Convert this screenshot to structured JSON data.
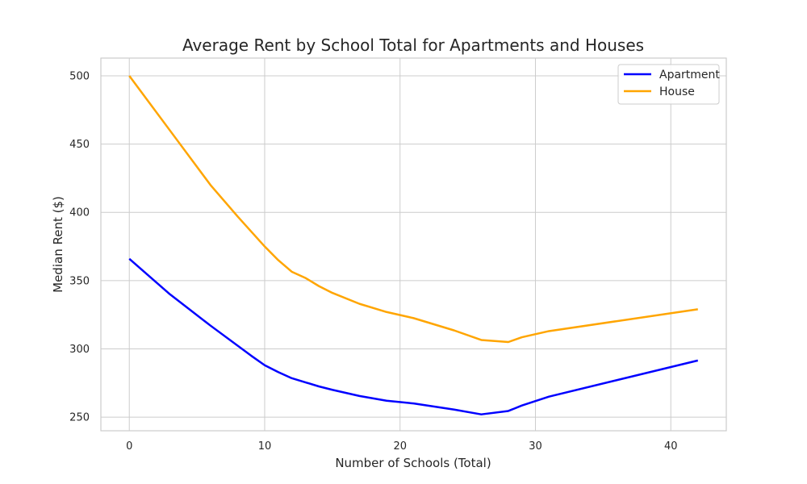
{
  "chart_data": {
    "type": "line",
    "title": "Average Rent by School Total for Apartments and Houses",
    "xlabel": "Number of Schools (Total)",
    "ylabel": "Median Rent ($)",
    "xlim": [
      -2.1,
      44.1
    ],
    "ylim": [
      240,
      513
    ],
    "xticks": [
      0,
      10,
      20,
      30,
      40
    ],
    "yticks": [
      250,
      300,
      350,
      400,
      450,
      500
    ],
    "grid": true,
    "legend_position": "top-right",
    "series": [
      {
        "name": "Apartment",
        "color": "#0000ff",
        "x": [
          0,
          3,
          6,
          9,
          10,
          11,
          12,
          13,
          14,
          15,
          17,
          19,
          21,
          24,
          26,
          28,
          29,
          31,
          42
        ],
        "y": [
          366,
          340,
          317,
          295,
          288,
          283,
          278.5,
          275.5,
          272.5,
          270,
          265.5,
          262,
          260,
          255.5,
          252,
          254.5,
          258.5,
          265,
          291.5
        ]
      },
      {
        "name": "House",
        "color": "#ffa500",
        "x": [
          0,
          3,
          6,
          8,
          9,
          10,
          11,
          12,
          13,
          14,
          15,
          17,
          19,
          21,
          24,
          26,
          28,
          29,
          31,
          42
        ],
        "y": [
          500,
          460,
          420,
          397,
          386,
          375,
          365,
          356.5,
          352,
          346,
          341,
          333,
          327,
          322.5,
          313.5,
          306.5,
          305,
          308.5,
          313,
          329
        ]
      }
    ]
  }
}
